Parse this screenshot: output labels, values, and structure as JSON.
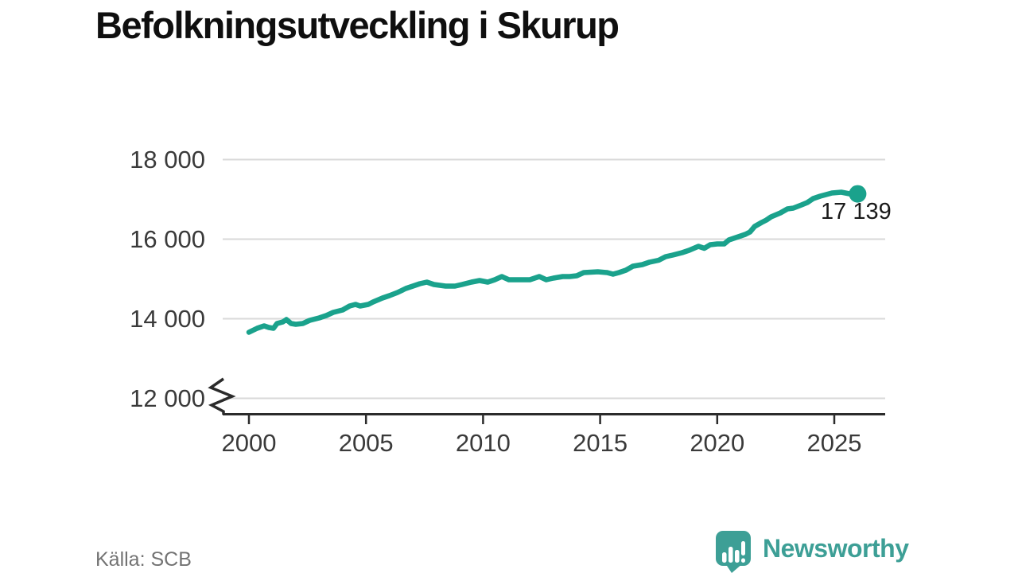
{
  "title": "Befolkningsutveckling i Skurup",
  "source_label": "Källa: SCB",
  "logo": {
    "name": "Newsworthy",
    "icon": "newsworthy-speech-bubble-chart-icon"
  },
  "colors": {
    "line": "#1aa28c",
    "grid": "#d9d9d9",
    "axis": "#2b2b2b",
    "tick_label": "#3a3a3a",
    "annotation": "#1a1a1a",
    "source": "#737373",
    "logo": "#3d9f96"
  },
  "chart_data": {
    "type": "line",
    "title": "Befolkningsutveckling i Skurup",
    "xlabel": "",
    "ylabel": "",
    "grid": true,
    "legend": false,
    "y_axis_break": true,
    "x_ticks": [
      2000,
      2005,
      2010,
      2015,
      2020,
      2025
    ],
    "x_tick_labels": [
      "2000",
      "2005",
      "2010",
      "2015",
      "2020",
      "2025"
    ],
    "y_ticks": [
      12000,
      14000,
      16000,
      18000
    ],
    "y_tick_labels": [
      "12 000",
      "14 000",
      "16 000",
      "18 000"
    ],
    "x_range": [
      1998.9,
      2027.2
    ],
    "y_range_displayed": [
      11600,
      18200
    ],
    "end_annotation": {
      "x": 2026.0,
      "y": 17139,
      "label": "17 139"
    },
    "series": [
      {
        "name": "Befolkning",
        "color": "#1aa28c",
        "points": [
          [
            2000.0,
            13660
          ],
          [
            2000.35,
            13760
          ],
          [
            2000.65,
            13820
          ],
          [
            2000.85,
            13780
          ],
          [
            2001.05,
            13760
          ],
          [
            2001.2,
            13880
          ],
          [
            2001.45,
            13920
          ],
          [
            2001.6,
            13980
          ],
          [
            2001.8,
            13880
          ],
          [
            2002.0,
            13860
          ],
          [
            2002.3,
            13880
          ],
          [
            2002.6,
            13960
          ],
          [
            2003.0,
            14020
          ],
          [
            2003.3,
            14080
          ],
          [
            2003.6,
            14160
          ],
          [
            2004.0,
            14220
          ],
          [
            2004.3,
            14320
          ],
          [
            2004.55,
            14360
          ],
          [
            2004.75,
            14320
          ],
          [
            2005.1,
            14360
          ],
          [
            2005.3,
            14420
          ],
          [
            2005.7,
            14520
          ],
          [
            2006.0,
            14580
          ],
          [
            2006.35,
            14660
          ],
          [
            2006.7,
            14760
          ],
          [
            2007.0,
            14820
          ],
          [
            2007.3,
            14880
          ],
          [
            2007.6,
            14920
          ],
          [
            2007.9,
            14860
          ],
          [
            2008.4,
            14820
          ],
          [
            2008.8,
            14820
          ],
          [
            2009.1,
            14860
          ],
          [
            2009.5,
            14920
          ],
          [
            2009.85,
            14960
          ],
          [
            2010.2,
            14920
          ],
          [
            2010.5,
            14980
          ],
          [
            2010.8,
            15060
          ],
          [
            2011.1,
            14980
          ],
          [
            2011.4,
            14980
          ],
          [
            2011.7,
            14980
          ],
          [
            2012.0,
            14980
          ],
          [
            2012.4,
            15060
          ],
          [
            2012.7,
            14980
          ],
          [
            2013.0,
            15020
          ],
          [
            2013.4,
            15060
          ],
          [
            2013.7,
            15060
          ],
          [
            2014.0,
            15080
          ],
          [
            2014.3,
            15160
          ],
          [
            2014.9,
            15180
          ],
          [
            2015.3,
            15160
          ],
          [
            2015.55,
            15120
          ],
          [
            2015.8,
            15160
          ],
          [
            2016.1,
            15220
          ],
          [
            2016.4,
            15320
          ],
          [
            2016.8,
            15360
          ],
          [
            2017.1,
            15420
          ],
          [
            2017.5,
            15470
          ],
          [
            2017.8,
            15560
          ],
          [
            2018.1,
            15600
          ],
          [
            2018.5,
            15660
          ],
          [
            2018.8,
            15720
          ],
          [
            2019.2,
            15820
          ],
          [
            2019.45,
            15770
          ],
          [
            2019.7,
            15860
          ],
          [
            2020.0,
            15880
          ],
          [
            2020.3,
            15880
          ],
          [
            2020.5,
            15980
          ],
          [
            2020.7,
            16020
          ],
          [
            2020.9,
            16060
          ],
          [
            2021.2,
            16120
          ],
          [
            2021.4,
            16180
          ],
          [
            2021.6,
            16320
          ],
          [
            2021.9,
            16420
          ],
          [
            2022.1,
            16480
          ],
          [
            2022.3,
            16560
          ],
          [
            2022.7,
            16660
          ],
          [
            2023.0,
            16760
          ],
          [
            2023.25,
            16780
          ],
          [
            2023.6,
            16860
          ],
          [
            2023.85,
            16920
          ],
          [
            2024.1,
            17020
          ],
          [
            2024.4,
            17080
          ],
          [
            2024.9,
            17160
          ],
          [
            2025.3,
            17180
          ],
          [
            2025.65,
            17140
          ],
          [
            2026.0,
            17139
          ]
        ]
      }
    ]
  }
}
